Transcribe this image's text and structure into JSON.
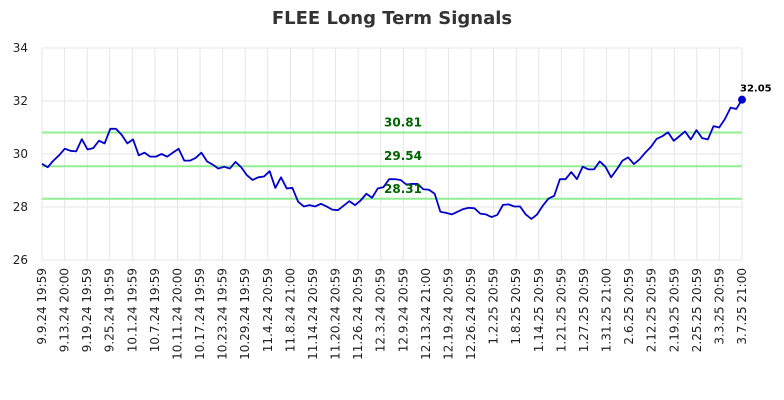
{
  "chart_data": {
    "type": "line",
    "title": "FLEE Long Term Signals",
    "ylim": [
      26,
      34
    ],
    "yticks": [
      26,
      28,
      30,
      32,
      34
    ],
    "grid": true,
    "x_tick_labels": [
      "9.9.24 19:59",
      "9.13.24 20:00",
      "9.19.24 19:59",
      "9.25.24 19:59",
      "10.1.24 19:59",
      "10.7.24 19:59",
      "10.11.24 20:00",
      "10.17.24 19:59",
      "10.23.24 19:59",
      "10.29.24 19:59",
      "11.4.24 20:59",
      "11.8.24 21:00",
      "11.14.24 20:59",
      "11.20.24 20:59",
      "11.26.24 20:59",
      "12.3.24 20:59",
      "12.9.24 20:59",
      "12.13.24 21:00",
      "12.19.24 20:59",
      "12.26.24 20:59",
      "1.2.25 20:59",
      "1.8.25 20:59",
      "1.14.25 20:59",
      "1.21.25 20:59",
      "1.27.25 20:59",
      "1.31.25 21:00",
      "2.6.25 20:59",
      "2.12.25 20:59",
      "2.19.25 20:59",
      "2.25.25 20:59",
      "3.3.25 20:59",
      "3.7.25 21:00"
    ],
    "series": [
      {
        "color": "#0000cc",
        "values": [
          29.63,
          29.5,
          29.75,
          29.95,
          30.2,
          30.12,
          30.1,
          30.56,
          30.17,
          30.22,
          30.5,
          30.4,
          30.95,
          30.95,
          30.72,
          30.4,
          30.55,
          29.95,
          30.05,
          29.9,
          29.9,
          30.0,
          29.9,
          30.05,
          30.2,
          29.75,
          29.75,
          29.85,
          30.05,
          29.72,
          29.6,
          29.45,
          29.52,
          29.45,
          29.7,
          29.5,
          29.2,
          29.02,
          29.12,
          29.15,
          29.35,
          28.72,
          29.12,
          28.7,
          28.72,
          28.2,
          28.02,
          28.07,
          28.02,
          28.12,
          28.02,
          27.9,
          27.88,
          28.05,
          28.22,
          28.07,
          28.25,
          28.5,
          28.35,
          28.7,
          28.75,
          29.05,
          29.05,
          29.02,
          28.85,
          28.87,
          28.87,
          28.67,
          28.65,
          28.5,
          27.82,
          27.78,
          27.72,
          27.82,
          27.92,
          27.97,
          27.95,
          27.75,
          27.72,
          27.62,
          27.7,
          28.08,
          28.1,
          28.02,
          28.02,
          27.72,
          27.55,
          27.72,
          28.05,
          28.32,
          28.42,
          29.05,
          29.05,
          29.32,
          29.05,
          29.52,
          29.42,
          29.42,
          29.72,
          29.52,
          29.12,
          29.42,
          29.75,
          29.87,
          29.62,
          29.8,
          30.05,
          30.27,
          30.57,
          30.67,
          30.82,
          30.5,
          30.67,
          30.85,
          30.55,
          30.9,
          30.6,
          30.55,
          31.05,
          31.0,
          31.32,
          31.75,
          31.7,
          32.05
        ]
      }
    ],
    "signal_lines": [
      {
        "value": 30.81,
        "label": "30.81",
        "color": "#90ee90",
        "text_color": "#006400"
      },
      {
        "value": 29.54,
        "label": "29.54",
        "color": "#90ee90",
        "text_color": "#006400"
      },
      {
        "value": 28.31,
        "label": "28.31",
        "color": "#90ee90",
        "text_color": "#006400"
      }
    ],
    "last_value_label": "32.05"
  }
}
